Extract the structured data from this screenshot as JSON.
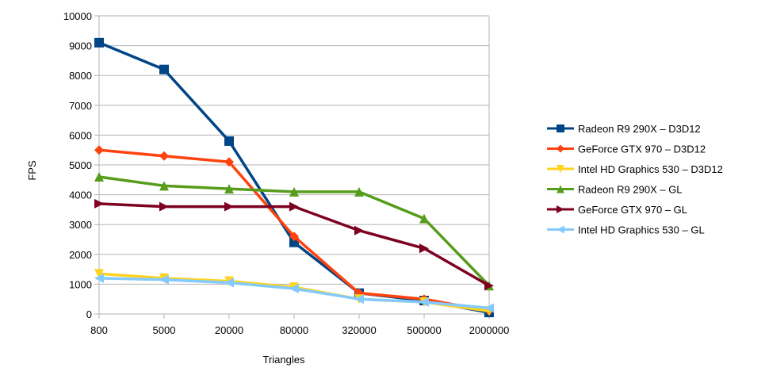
{
  "chart_data": {
    "type": "line",
    "title": "",
    "xlabel": "Triangles",
    "ylabel": "FPS",
    "categories": [
      "800",
      "5000",
      "20000",
      "80000",
      "320000",
      "500000",
      "2000000"
    ],
    "ylim": [
      0,
      10000
    ],
    "yticks": [
      0,
      1000,
      2000,
      3000,
      4000,
      5000,
      6000,
      7000,
      8000,
      9000,
      10000
    ],
    "grid": true,
    "legend_position": "right",
    "series": [
      {
        "name": "Radeon R9 290X – D3D12",
        "color": "#004586",
        "marker": "square",
        "values": [
          9100,
          8200,
          5800,
          2400,
          700,
          450,
          50
        ]
      },
      {
        "name": "GeForce GTX 970 – D3D12",
        "color": "#ff420e",
        "marker": "diamond",
        "values": [
          5500,
          5300,
          5100,
          2600,
          700,
          500,
          100
        ]
      },
      {
        "name": "Intel HD Graphics 530 – D3D12",
        "color": "#ffd320",
        "marker": "triangle-down",
        "values": [
          1350,
          1200,
          1100,
          900,
          500,
          400,
          100
        ]
      },
      {
        "name": "Radeon R9 290X – GL",
        "color": "#579d1c",
        "marker": "triangle-up",
        "values": [
          4600,
          4300,
          4200,
          4100,
          4100,
          3200,
          950
        ]
      },
      {
        "name": "GeForce GTX 970 – GL",
        "color": "#7e0021",
        "marker": "triangle-right",
        "values": [
          3700,
          3600,
          3600,
          3600,
          2800,
          2200,
          950
        ]
      },
      {
        "name": "Intel HD Graphics 530 – GL",
        "color": "#83caff",
        "marker": "triangle-left",
        "values": [
          1200,
          1150,
          1050,
          850,
          500,
          400,
          200
        ]
      }
    ]
  }
}
